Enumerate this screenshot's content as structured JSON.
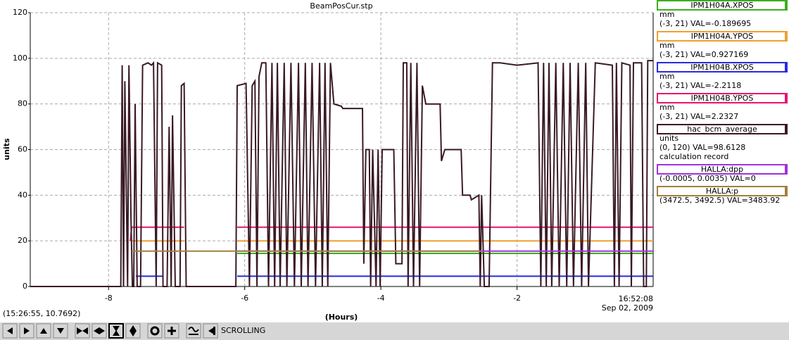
{
  "chart_data": {
    "type": "line",
    "title": "BeamPosCur.stp",
    "ylabel": "units",
    "xlabel": "(Hours)",
    "time_label": "16:52:08",
    "date_label": "Sep 02, 2009",
    "xlim": [
      -9.15,
      0
    ],
    "xticks": [
      -8,
      -6,
      -4,
      -2
    ],
    "ylim": [
      0,
      120
    ],
    "yticks": [
      0,
      20,
      40,
      60,
      80,
      100,
      120
    ],
    "grid": true,
    "series": [
      {
        "name": "IPM1H04A.XPOS",
        "color": "#3cae1e",
        "details": [
          "mm",
          "(-3, 21) VAL=-0.189695"
        ],
        "x": [
          -6.11,
          0
        ],
        "values": [
          14.5,
          14.5
        ]
      },
      {
        "name": "IPM1H04A.YPOS",
        "color": "#f0a030",
        "details": [
          "mm",
          "(-3, 21) VAL=0.927169"
        ],
        "x": [
          -7.66,
          -6.89,
          -6.5,
          -6.11,
          0
        ],
        "values": [
          20,
          20,
          null,
          20,
          20
        ]
      },
      {
        "name": "IPM1H04B.XPOS",
        "color": "#2a2ae0",
        "details": [
          "mm",
          "(-3, 21) VAL=-2.2118"
        ],
        "x": [
          -7.6,
          -7.2,
          -6.5,
          -6.11,
          0
        ],
        "values": [
          4.5,
          4.5,
          null,
          4.5,
          4.5
        ]
      },
      {
        "name": "IPM1H04B.YPOS",
        "color": "#e8146e",
        "details": [
          "mm",
          "(-3, 21) VAL=2.2327"
        ],
        "x": [
          -7.68,
          -7.66,
          -6.89,
          -6.5,
          -6.11,
          0
        ],
        "values": [
          20,
          26,
          26,
          null,
          26,
          26
        ]
      },
      {
        "name": "hac_bcm_average",
        "color": "#3a1a24",
        "details": [
          "units",
          "(0, 120) VAL=98.6128",
          "calculation record"
        ],
        "x": [
          -9.15,
          -7.82,
          -7.8,
          -7.78,
          -7.76,
          -7.72,
          -7.7,
          -7.67,
          -7.65,
          -7.63,
          -7.61,
          -7.58,
          -7.53,
          -7.5,
          -7.42,
          -7.37,
          -7.34,
          -7.3,
          -7.28,
          -7.22,
          -7.2,
          -7.14,
          -7.11,
          -7.08,
          -7.06,
          -7.02,
          -6.95,
          -6.93,
          -6.89,
          -6.86,
          -6.13,
          -6.11,
          -5.98,
          -5.93,
          -5.89,
          -5.85,
          -5.82,
          -5.79,
          -5.75,
          -5.69,
          -5.65,
          -5.6,
          -5.56,
          -5.52,
          -5.48,
          -5.42,
          -5.38,
          -5.32,
          -5.27,
          -5.21,
          -5.17,
          -5.11,
          -5.07,
          -5.01,
          -4.96,
          -4.9,
          -4.86,
          -4.82,
          -4.78,
          -4.74,
          -4.69,
          -4.58,
          -4.56,
          -4.27,
          -4.25,
          -4.22,
          -4.17,
          -4.15,
          -4.12,
          -4.07,
          -4.04,
          -4.01,
          -3.98,
          -3.93,
          -3.81,
          -3.78,
          -3.69,
          -3.67,
          -3.62,
          -3.6,
          -3.56,
          -3.52,
          -3.47,
          -3.43,
          -3.39,
          -3.34,
          -3.13,
          -3.11,
          -3.06,
          -2.82,
          -2.8,
          -2.69,
          -2.67,
          -2.56,
          -2.54,
          -2.52,
          -2.48,
          -2.41,
          -2.36,
          -2.25,
          -2,
          -1.69,
          -1.65,
          -1.61,
          -1.57,
          -1.53,
          -1.49,
          -1.43,
          -1.38,
          -1.32,
          -1.27,
          -1.22,
          -1.17,
          -1.1,
          -1.05,
          -0.99,
          -0.95,
          -0.85,
          -0.6,
          -0.57,
          -0.54,
          -0.5,
          -0.46,
          -0.34,
          -0.32,
          -0.29,
          -0.17,
          -0.14,
          -0.1,
          -0.08,
          0
        ],
        "values": [
          0,
          0,
          97,
          0,
          90,
          0,
          97,
          30,
          0,
          0,
          80,
          0,
          0,
          97,
          98,
          97,
          98,
          0,
          98,
          97,
          0,
          0,
          70,
          0,
          75,
          0,
          0,
          88,
          89,
          0,
          0,
          88,
          89,
          0,
          88,
          90,
          0,
          92,
          98,
          98,
          0,
          98,
          0,
          98,
          0,
          98,
          0,
          98,
          0,
          98,
          0,
          98,
          0,
          98,
          0,
          98,
          0,
          98,
          0,
          98,
          80,
          79,
          78,
          78,
          10,
          60,
          60,
          0,
          60,
          0,
          60,
          0,
          60,
          60,
          60,
          10,
          10,
          98,
          98,
          0,
          98,
          0,
          98,
          0,
          88,
          80,
          80,
          55,
          60,
          60,
          40,
          40,
          38,
          40,
          0,
          40,
          0,
          0,
          98,
          98,
          97,
          98,
          0,
          98,
          0,
          98,
          0,
          98,
          0,
          98,
          0,
          98,
          0,
          98,
          0,
          98,
          0,
          98,
          97,
          0,
          98,
          0,
          98,
          97,
          0,
          98,
          98,
          0,
          0,
          99,
          99
        ]
      },
      {
        "name": "HALLA:dpp",
        "color": "#a030e0",
        "details": [
          "(-0.0005, 0.0035) VAL=0"
        ],
        "x": [
          -6.11,
          0
        ],
        "values": [
          15.5,
          15.5
        ]
      },
      {
        "name": "HALLA:p",
        "color": "#a08040",
        "details": [
          "(3472.5, 3492.5) VAL=3483.92"
        ],
        "x": [
          -7.66,
          -2.52
        ],
        "values": [
          15.5,
          15.5
        ]
      }
    ]
  },
  "status": {
    "cursor": "(15:26:55, 10.7692)"
  },
  "toolbar": {
    "mode": "SCROLLING"
  }
}
